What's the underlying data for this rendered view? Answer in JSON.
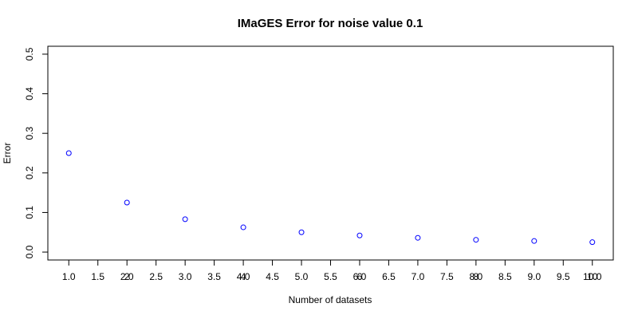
{
  "chart_data": {
    "type": "line",
    "title": "IMaGES Error for noise value 0.1",
    "xlabel": "Number of datasets",
    "ylabel": "Error",
    "x": [
      1,
      2,
      3,
      4,
      5,
      6,
      7,
      8,
      9,
      10
    ],
    "series": [
      {
        "name": "Error",
        "color": "#0000ff",
        "values": [
          0.25,
          0.125,
          0.083,
          0.0625,
          0.05,
          0.042,
          0.036,
          0.031,
          0.028,
          0.025
        ]
      }
    ],
    "xlim": [
      0.64,
      10.36
    ],
    "ylim": [
      -0.02,
      0.52
    ],
    "xticks": [
      {
        "value": 1,
        "label": "1.0"
      },
      1.5,
      {
        "value": 2,
        "label": "2.0"
      },
      2.5,
      {
        "value": 3,
        "label": "3.0"
      },
      3.5,
      {
        "value": 4,
        "label": "4.0"
      },
      4.5,
      {
        "value": 5,
        "label": "5.0"
      },
      5.5,
      {
        "value": 6,
        "label": "6.0"
      },
      6.5,
      {
        "value": 7,
        "label": "7.0"
      },
      7.5,
      {
        "value": 8,
        "label": "8.0"
      },
      8.5,
      {
        "value": 9,
        "label": "9.0"
      },
      9.5,
      {
        "value": 10,
        "label": "10.0"
      }
    ],
    "xticks_overlay": [
      2,
      4,
      6,
      8,
      10
    ],
    "yticks": [
      {
        "value": 0,
        "label": "0.0"
      },
      0.1,
      0.2,
      0.3,
      0.4,
      0.5
    ],
    "grid": false
  }
}
